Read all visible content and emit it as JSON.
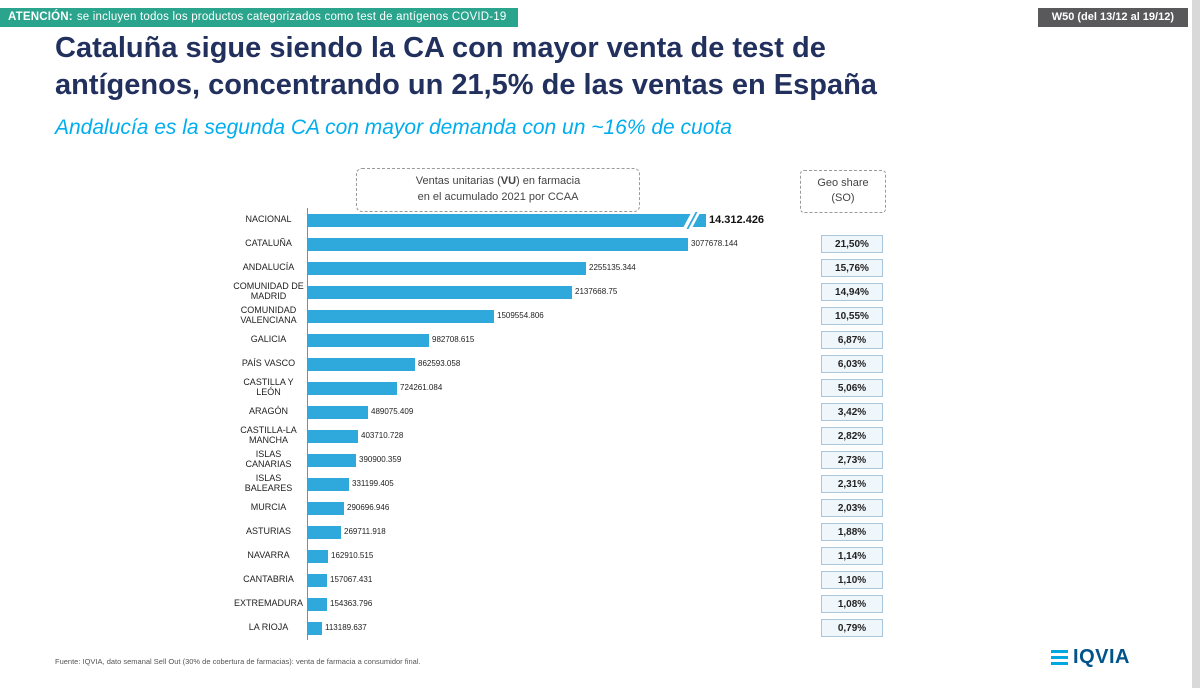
{
  "banner": {
    "attention_label": "ATENCIÓN:",
    "attention_text": "se incluyen todos los productos categorizados como test de antígenos COVID-19",
    "week_badge": "W50 (del 13/12 al 19/12)"
  },
  "header": {
    "title_line1": "Cataluña sigue siendo la CA con mayor venta de test de",
    "title_line2": "antígenos, concentrando un 21,5% de las ventas en España",
    "subtitle": "Andalucía es la segunda CA con mayor demanda con un ~16% de cuota"
  },
  "chart_data": {
    "type": "bar",
    "orientation": "horizontal",
    "title_box": {
      "line1_prefix": "Ventas unitarias (",
      "line1_bold": "VU",
      "line1_suffix": ") en farmacia",
      "line2": "en el acumulado 2021 por CCAA"
    },
    "geo_share_header": {
      "line1": "Geo share",
      "line2": "(SO)"
    },
    "bar_color": "#2FA9DC",
    "axis_break_on": "NACIONAL",
    "categories": [
      "NACIONAL",
      "CATALUÑA",
      "ANDALUCÍA",
      "COMUNIDAD DE MADRID",
      "COMUNIDAD VALENCIANA",
      "GALICIA",
      "PAÍS VASCO",
      "CASTILLA Y LEÓN",
      "ARAGÓN",
      "CASTILLA-LA MANCHA",
      "ISLAS CANARIAS",
      "ISLAS BALEARES",
      "MURCIA",
      "ASTURIAS",
      "NAVARRA",
      "CANTABRIA",
      "EXTREMADURA",
      "LA RIOJA"
    ],
    "values": [
      14312426,
      3077678.144,
      2255135.344,
      2137668.75,
      1509554.806,
      982708.615,
      862593.058,
      724261.084,
      489075.409,
      403710.728,
      390900.359,
      331199.405,
      290696.946,
      269711.918,
      162910.515,
      157067.431,
      154363.796,
      113189.637
    ],
    "value_labels": [
      "14.312.426",
      "3077678.144",
      "2255135.344",
      "2137668.75",
      "1509554.806",
      "982708.615",
      "862593.058",
      "724261.084",
      "489075.409",
      "403710.728",
      "390900.359",
      "331199.405",
      "290696.946",
      "269711.918",
      "162910.515",
      "157067.431",
      "154363.796",
      "113189.637"
    ],
    "geo_share": [
      "",
      "21,50%",
      "15,76%",
      "14,94%",
      "10,55%",
      "6,87%",
      "6,03%",
      "5,06%",
      "3,42%",
      "2,82%",
      "2,73%",
      "2,31%",
      "2,03%",
      "1,88%",
      "1,14%",
      "1,10%",
      "1,08%",
      "0,79%"
    ]
  },
  "footer": {
    "source": "Fuente: IQVIA, dato semanal Sell Out (30% de cobertura de farmacias): venta de farmacia a consumidor final.",
    "logo_text": "IQVIA"
  },
  "colors": {
    "banner_teal": "#2AA48C",
    "badge_gray": "#59595B",
    "title_navy": "#22305E",
    "subtitle_cyan": "#00AEEF",
    "bar_blue": "#2FA9DC",
    "geo_cell_border": "#A8C6DC",
    "geo_cell_bg": "#F0F7FC"
  }
}
